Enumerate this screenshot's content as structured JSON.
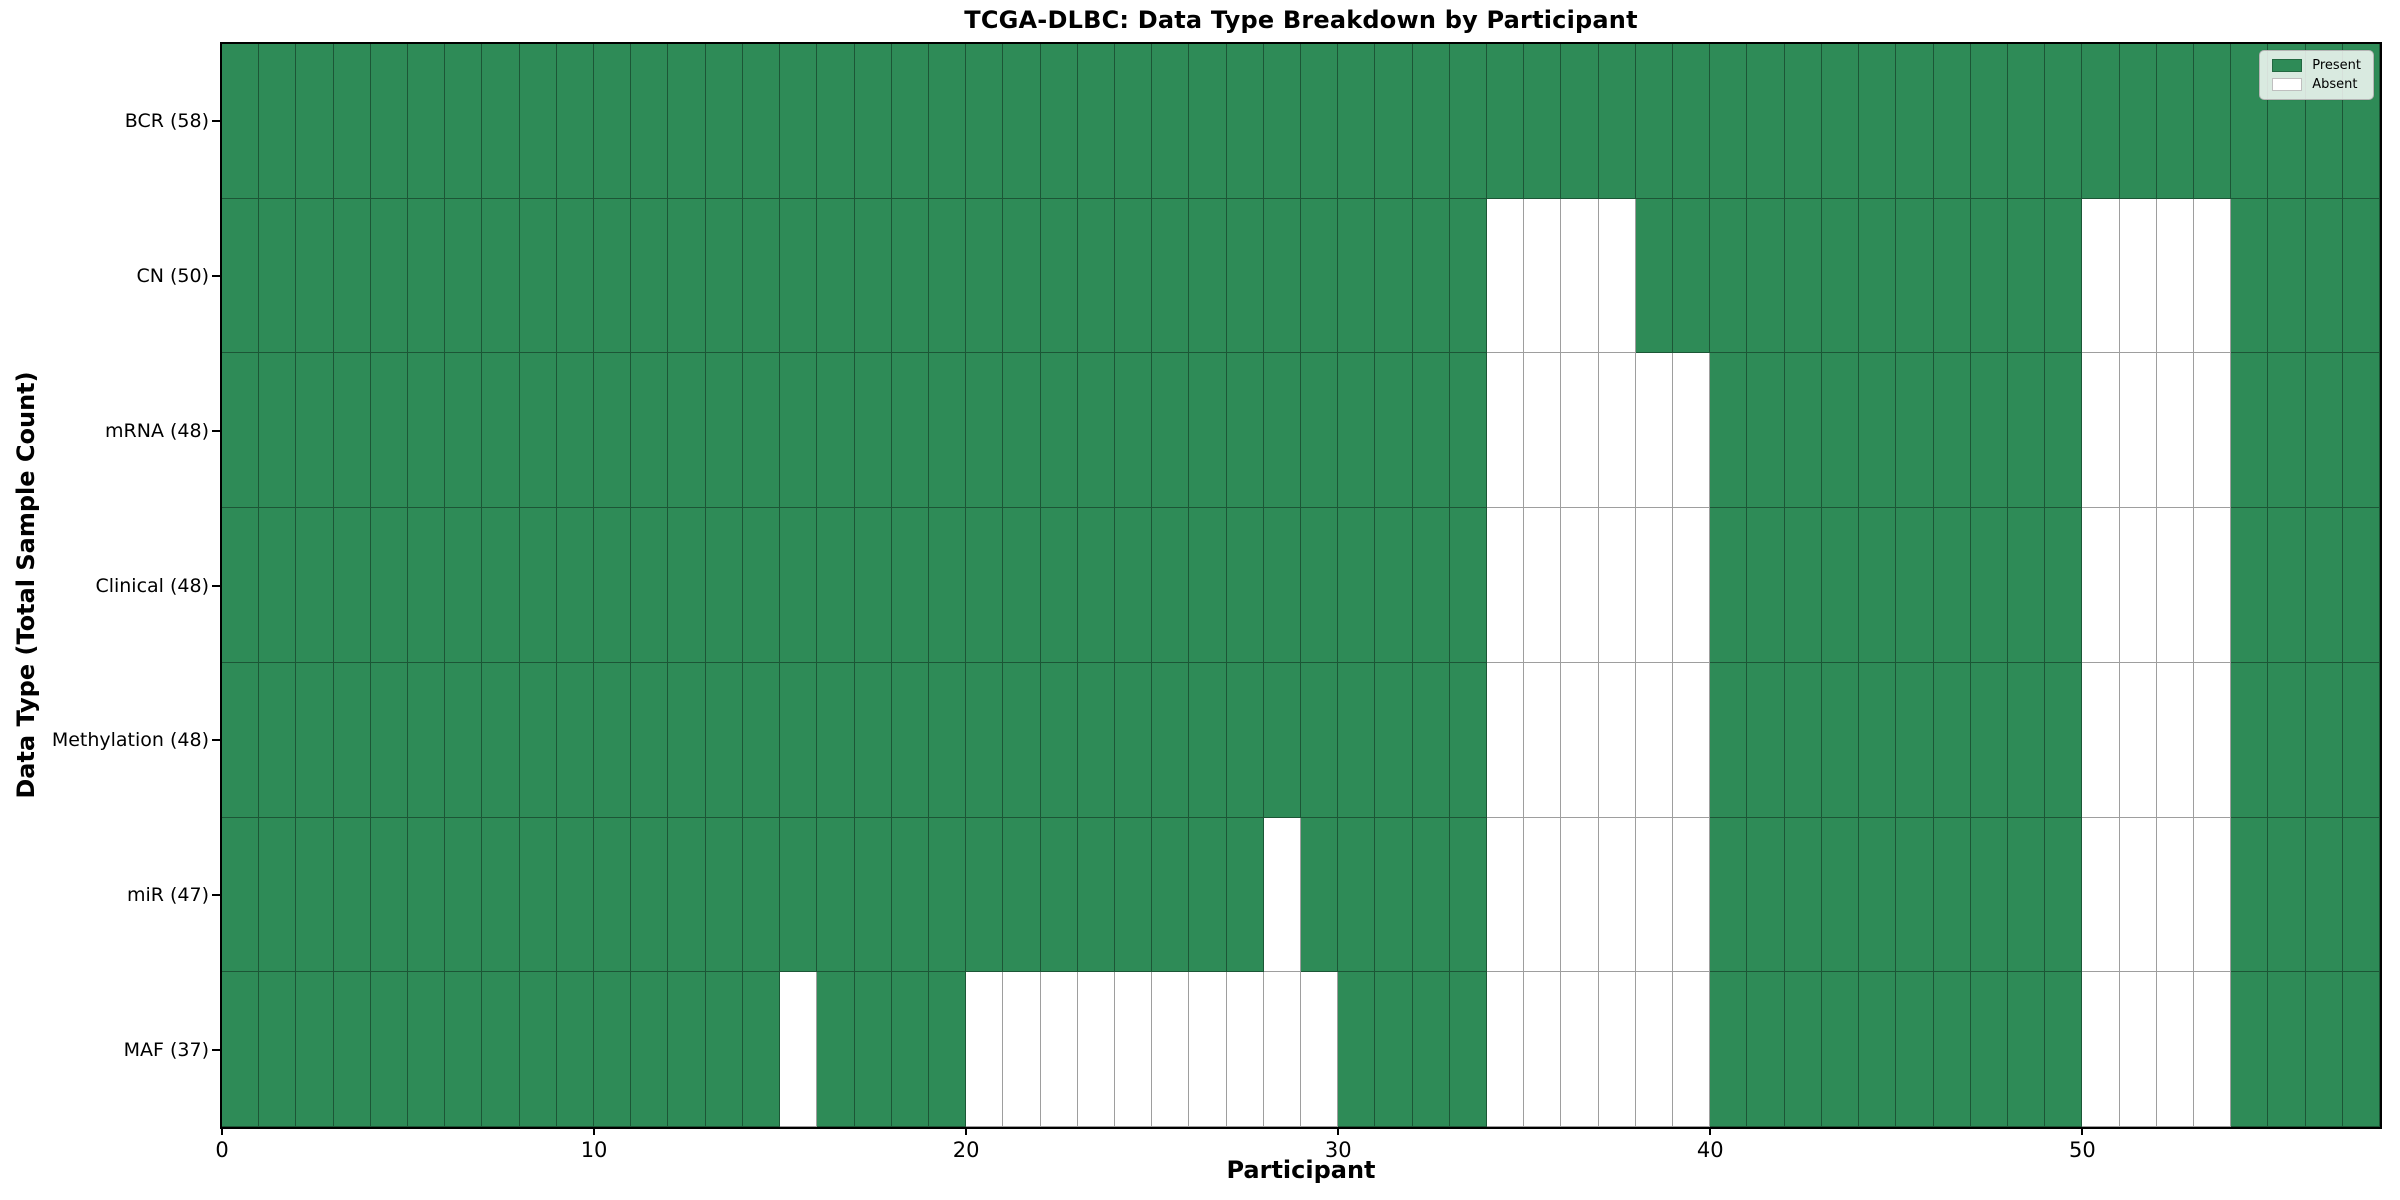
{
  "chart_data": {
    "type": "heatmap",
    "title": "TCGA-DLBC: Data Type Breakdown by Participant",
    "xlabel": "Participant",
    "ylabel": "Data Type (Total Sample Count)",
    "n_participants": 58,
    "x_axis": {
      "min": 0,
      "max": 58,
      "ticks": [
        0,
        10,
        20,
        30,
        40,
        50
      ]
    },
    "grid": "cell-borders",
    "legend_position": "upper-right",
    "colors": {
      "present": "#2e8b57",
      "absent": "#ffffff"
    },
    "legend": [
      {
        "label": "Present",
        "value": "present",
        "color": "#2e8b57"
      },
      {
        "label": "Absent",
        "value": "absent",
        "color": "#ffffff"
      }
    ],
    "rows": [
      {
        "label": "BCR (58)",
        "data_type": "BCR",
        "total_sample_count": 58,
        "absent_participants": []
      },
      {
        "label": "CN (50)",
        "data_type": "CN",
        "total_sample_count": 50,
        "absent_participants": [
          34,
          35,
          36,
          37,
          50,
          51,
          52,
          53
        ]
      },
      {
        "label": "mRNA (48)",
        "data_type": "mRNA",
        "total_sample_count": 48,
        "absent_participants": [
          34,
          35,
          36,
          37,
          38,
          39,
          50,
          51,
          52,
          53
        ]
      },
      {
        "label": "Clinical (48)",
        "data_type": "Clinical",
        "total_sample_count": 48,
        "absent_participants": [
          34,
          35,
          36,
          37,
          38,
          39,
          50,
          51,
          52,
          53
        ]
      },
      {
        "label": "Methylation (48)",
        "data_type": "Methylation",
        "total_sample_count": 48,
        "absent_participants": [
          34,
          35,
          36,
          37,
          38,
          39,
          50,
          51,
          52,
          53
        ]
      },
      {
        "label": "miR (47)",
        "data_type": "miR",
        "total_sample_count": 47,
        "absent_participants": [
          28,
          34,
          35,
          36,
          37,
          38,
          39,
          50,
          51,
          52,
          53
        ]
      },
      {
        "label": "MAF (37)",
        "data_type": "MAF",
        "total_sample_count": 37,
        "absent_participants": [
          15,
          20,
          21,
          22,
          23,
          24,
          25,
          26,
          27,
          28,
          29,
          34,
          35,
          36,
          37,
          38,
          39,
          50,
          51,
          52,
          53
        ]
      }
    ]
  }
}
